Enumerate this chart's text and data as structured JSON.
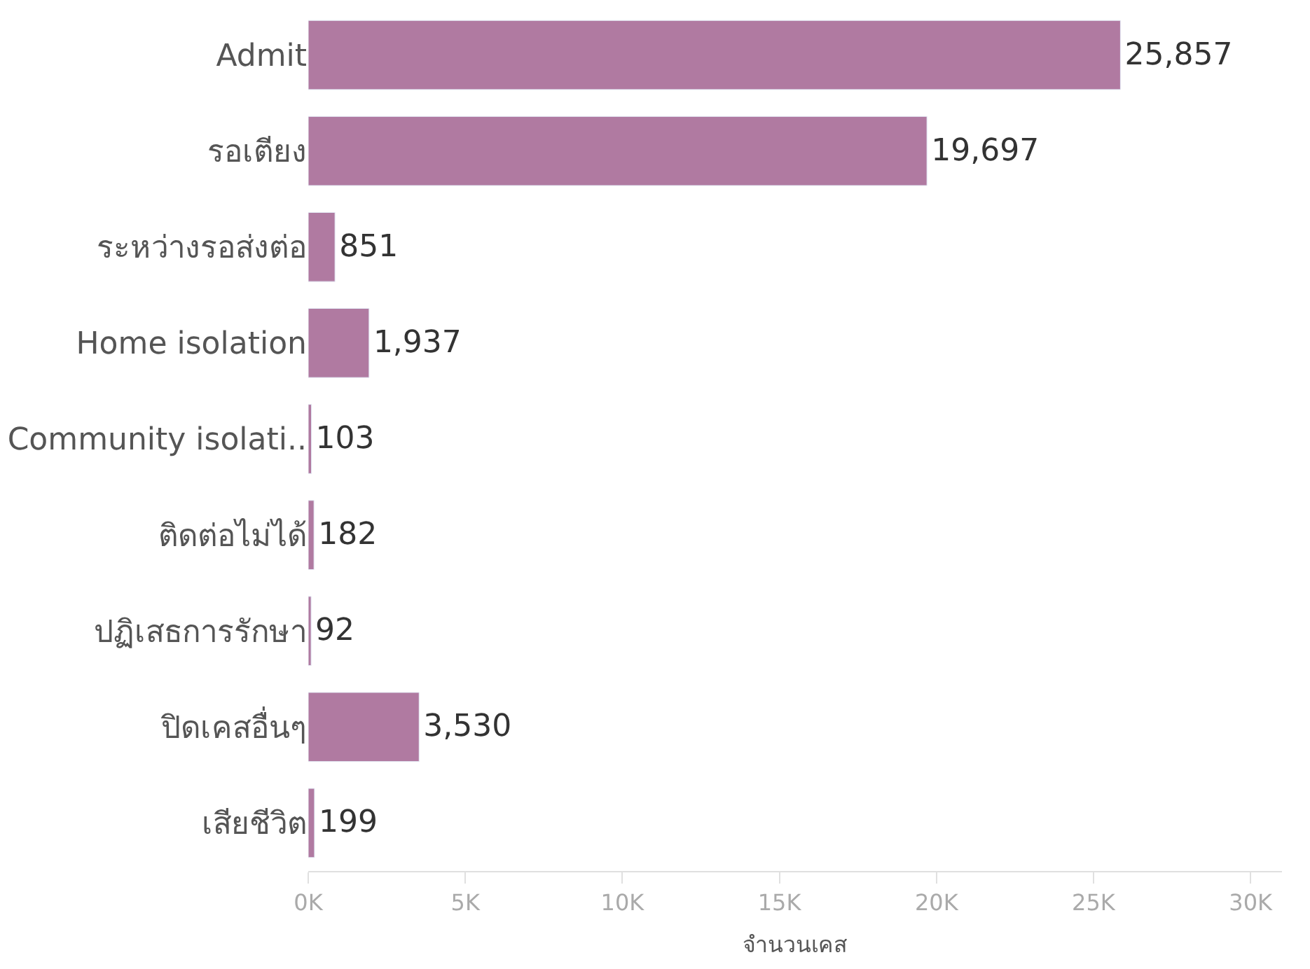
{
  "chart_data": {
    "type": "bar",
    "orientation": "horizontal",
    "xlabel": "จำนวนเคส",
    "categories": [
      "Admit",
      "รอเตียง",
      "ระหว่างรอส่งต่อ",
      "Home isolation",
      "Community isolati..",
      "ติดต่อไม่ได้",
      "ปฏิเสธการรักษา",
      "ปิดเคสอื่นๆ",
      "เสียชีวิต"
    ],
    "values": [
      25857,
      19697,
      851,
      1937,
      103,
      182,
      92,
      3530,
      199
    ],
    "value_labels": [
      "25,857",
      "19,697",
      "851",
      "1,937",
      "103",
      "182",
      "92",
      "3,530",
      "199"
    ],
    "color": "#b07aa1",
    "xlim": [
      0,
      31000
    ],
    "xticks": [
      {
        "value": 0,
        "label": "0K"
      },
      {
        "value": 5000,
        "label": "5K"
      },
      {
        "value": 10000,
        "label": "10K"
      },
      {
        "value": 15000,
        "label": "15K"
      },
      {
        "value": 20000,
        "label": "20K"
      },
      {
        "value": 25000,
        "label": "25K"
      },
      {
        "value": 30000,
        "label": "30K"
      }
    ]
  }
}
